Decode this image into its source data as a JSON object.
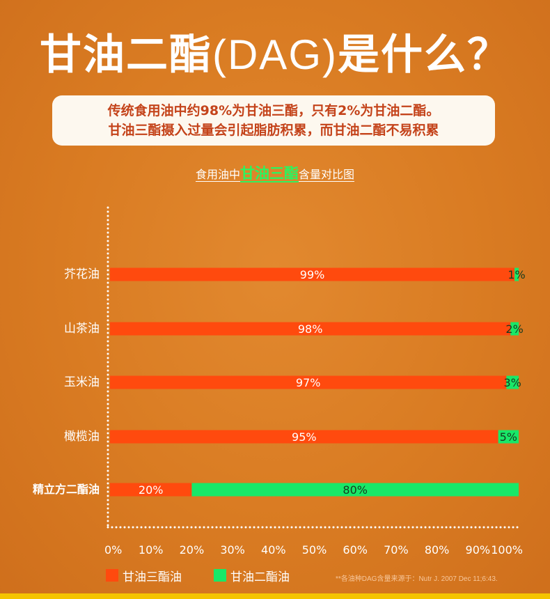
{
  "title_cn": "甘油二酯",
  "title_paren": "(DAG)",
  "title_tail": "是什么？",
  "notice": {
    "line1": "传统食用油中约98%为甘油三酯，只有2%为甘油二酯。",
    "line2": "甘油三酯摄入过量会引起脂肪积累，而甘油二酯不易积累"
  },
  "subtitle": {
    "pre": "食用油中",
    "highlight": "甘油三酯",
    "post": "含量对比图"
  },
  "colors": {
    "tag": "#ff4a0e",
    "dag": "#18e868",
    "highlight": "#2ef25f"
  },
  "chart_data": {
    "type": "bar",
    "orientation": "horizontal",
    "stacked": true,
    "categories": [
      "芥花油",
      "山茶油",
      "玉米油",
      "橄榄油",
      "精立方二酯油"
    ],
    "series": [
      {
        "name": "甘油三酯油",
        "values": [
          99,
          98,
          97,
          95,
          20
        ],
        "labels": [
          "99%",
          "98%",
          "97%",
          "95%",
          "20%"
        ]
      },
      {
        "name": "甘油二酯油",
        "values": [
          1,
          2,
          3,
          5,
          80
        ],
        "labels": [
          "1%",
          "2%",
          "3%",
          "5%",
          "80%"
        ]
      }
    ],
    "xticks": [
      "0%",
      "10%",
      "20%",
      "30%",
      "40%",
      "50%",
      "60%",
      "70%",
      "80%",
      "90%",
      "100%"
    ],
    "xlim": [
      0,
      100
    ],
    "legend_position": "bottom-left"
  },
  "source_note": "**各油种DAG含量来源于：Nutr J. 2007 Dec 11;6:43."
}
